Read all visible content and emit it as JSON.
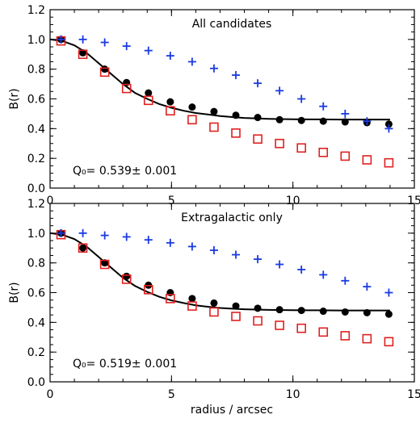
{
  "chart_data": [
    {
      "type": "scatter",
      "panel_label": "All candidates",
      "annotation": "Q₀= 0.539± 0.001",
      "ylabel": "B(r)",
      "xlabel": "",
      "xlim": [
        0,
        15
      ],
      "ylim": [
        0,
        1.2
      ],
      "xticks": [
        "0",
        "5",
        "10",
        "15"
      ],
      "yticks": [
        "0.0",
        "0.2",
        "0.4",
        "0.6",
        "0.8",
        "1.0",
        "1.2"
      ],
      "series": [
        {
          "marker": "filled-circle",
          "color": "#000000",
          "x": [
            0.45,
            1.35,
            2.25,
            3.15,
            4.05,
            4.95,
            5.85,
            6.75,
            7.65,
            8.55,
            9.45,
            10.35,
            11.25,
            12.15,
            13.05,
            13.95
          ],
          "y": [
            1.0,
            0.91,
            0.8,
            0.71,
            0.64,
            0.58,
            0.545,
            0.515,
            0.49,
            0.475,
            0.46,
            0.455,
            0.45,
            0.445,
            0.44,
            0.43
          ]
        },
        {
          "marker": "open-square",
          "color": "#e02020",
          "x": [
            0.45,
            1.35,
            2.25,
            3.15,
            4.05,
            4.95,
            5.85,
            6.75,
            7.65,
            8.55,
            9.45,
            10.35,
            11.25,
            12.15,
            13.05,
            13.95
          ],
          "y": [
            0.99,
            0.9,
            0.78,
            0.67,
            0.59,
            0.52,
            0.46,
            0.41,
            0.37,
            0.33,
            0.3,
            0.27,
            0.24,
            0.215,
            0.19,
            0.17
          ]
        },
        {
          "marker": "plus",
          "color": "#1a3ae0",
          "x": [
            0.45,
            1.35,
            2.25,
            3.15,
            4.05,
            4.95,
            5.85,
            6.75,
            7.65,
            8.55,
            9.45,
            10.35,
            11.25,
            12.15,
            13.05,
            13.95
          ],
          "y": [
            1.0,
            1.0,
            0.98,
            0.955,
            0.925,
            0.89,
            0.85,
            0.805,
            0.76,
            0.705,
            0.655,
            0.6,
            0.55,
            0.5,
            0.45,
            0.4
          ]
        }
      ],
      "fit_line": {
        "color": "#000000",
        "x": [
          0.0,
          0.5,
          1.0,
          1.5,
          2.0,
          2.5,
          3.0,
          3.5,
          4.0,
          4.5,
          5.0,
          5.5,
          6.0,
          6.5,
          7.0,
          7.5,
          8.0,
          9.0,
          10.0,
          11.0,
          12.0,
          13.0,
          14.0
        ],
        "y": [
          1.0,
          0.99,
          0.96,
          0.91,
          0.84,
          0.77,
          0.7,
          0.64,
          0.6,
          0.565,
          0.54,
          0.52,
          0.505,
          0.495,
          0.485,
          0.478,
          0.472,
          0.466,
          0.463,
          0.462,
          0.461,
          0.461,
          0.461
        ]
      }
    },
    {
      "type": "scatter",
      "panel_label": "Extragalactic only",
      "annotation": "Q₀= 0.519± 0.001",
      "ylabel": "B(r)",
      "xlabel": "radius / arcsec",
      "xlim": [
        0,
        15
      ],
      "ylim": [
        0,
        1.2
      ],
      "xticks": [
        "0",
        "5",
        "10",
        "15"
      ],
      "yticks": [
        "0.0",
        "0.2",
        "0.4",
        "0.6",
        "0.8",
        "1.0",
        "1.2"
      ],
      "series": [
        {
          "marker": "filled-circle",
          "color": "#000000",
          "x": [
            0.45,
            1.35,
            2.25,
            3.15,
            4.05,
            4.95,
            5.85,
            6.75,
            7.65,
            8.55,
            9.45,
            10.35,
            11.25,
            12.15,
            13.05,
            13.95
          ],
          "y": [
            1.0,
            0.9,
            0.8,
            0.71,
            0.65,
            0.6,
            0.56,
            0.53,
            0.51,
            0.495,
            0.485,
            0.48,
            0.475,
            0.47,
            0.465,
            0.455
          ]
        },
        {
          "marker": "open-square",
          "color": "#e02020",
          "x": [
            0.45,
            1.35,
            2.25,
            3.15,
            4.05,
            4.95,
            5.85,
            6.75,
            7.65,
            8.55,
            9.45,
            10.35,
            11.25,
            12.15,
            13.05,
            13.95
          ],
          "y": [
            0.99,
            0.9,
            0.79,
            0.69,
            0.62,
            0.56,
            0.51,
            0.47,
            0.44,
            0.41,
            0.38,
            0.36,
            0.335,
            0.31,
            0.29,
            0.27
          ]
        },
        {
          "marker": "plus",
          "color": "#1a3ae0",
          "x": [
            0.45,
            1.35,
            2.25,
            3.15,
            4.05,
            4.95,
            5.85,
            6.75,
            7.65,
            8.55,
            9.45,
            10.35,
            11.25,
            12.15,
            13.05,
            13.95
          ],
          "y": [
            1.0,
            1.0,
            0.985,
            0.975,
            0.955,
            0.935,
            0.91,
            0.885,
            0.855,
            0.825,
            0.79,
            0.755,
            0.72,
            0.68,
            0.64,
            0.6
          ]
        }
      ],
      "fit_line": {
        "color": "#000000",
        "x": [
          0.0,
          0.5,
          1.0,
          1.5,
          2.0,
          2.5,
          3.0,
          3.5,
          4.0,
          4.5,
          5.0,
          5.5,
          6.0,
          6.5,
          7.0,
          7.5,
          8.0,
          9.0,
          10.0,
          11.0,
          12.0,
          13.0,
          14.0
        ],
        "y": [
          1.0,
          0.99,
          0.96,
          0.91,
          0.84,
          0.77,
          0.7,
          0.645,
          0.605,
          0.572,
          0.548,
          0.53,
          0.515,
          0.505,
          0.497,
          0.492,
          0.488,
          0.484,
          0.482,
          0.481,
          0.48,
          0.48,
          0.48
        ]
      }
    }
  ]
}
